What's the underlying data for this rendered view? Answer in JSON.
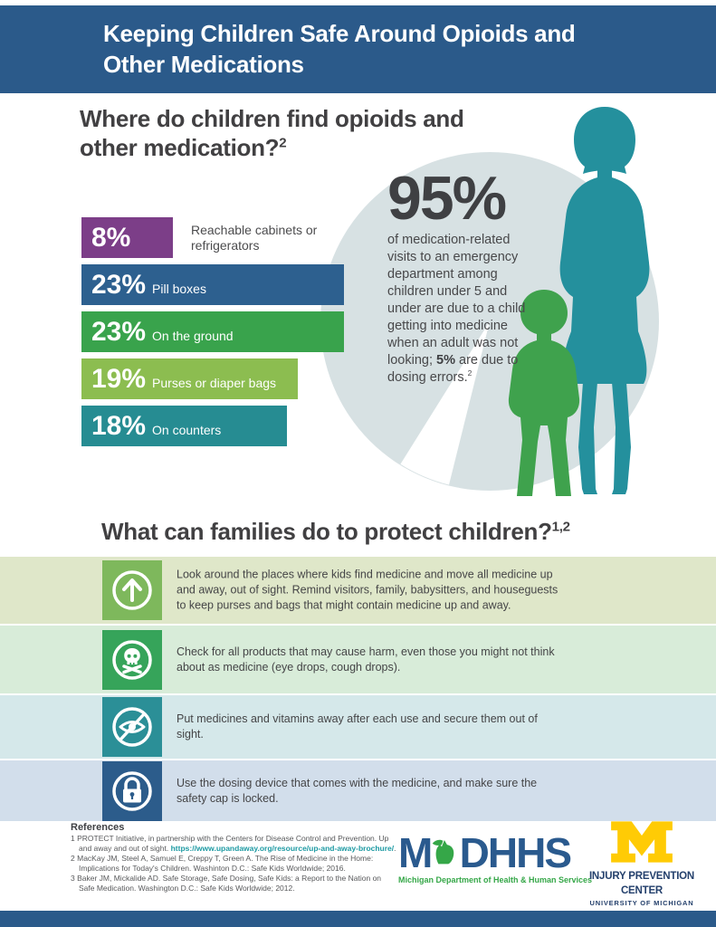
{
  "colors": {
    "header_blue": "#2b5a8a",
    "text_dark": "#414042",
    "circle_gray": "#d7e1e3",
    "woman_teal": "#24909d",
    "child_green": "#3fa24d",
    "link_teal": "#1d9aa3",
    "mdhhs_blue": "#2a5a8e",
    "mdhhs_green": "#35a748",
    "um_navy": "#24406c",
    "um_maize": "#ffcb05"
  },
  "header": {
    "title_line1": "Keeping Children Safe Around Opioids and",
    "title_line2": "Other Medications"
  },
  "section1": {
    "heading_line1": "Where do children find opioids and",
    "heading_line2": "other medication?",
    "heading_sup": "2"
  },
  "chart_data": {
    "type": "bar",
    "orientation": "horizontal",
    "title": "Where do children find opioids and other medication?",
    "unit": "%",
    "categories": [
      "Reachable cabinets or refrigerators",
      "Pill boxes",
      "On the ground",
      "Purses or diaper bags",
      "On counters"
    ],
    "values": [
      8,
      23,
      23,
      19,
      18
    ],
    "bars": [
      {
        "value": "8%",
        "number": 8,
        "label": "Reachable cabinets or refrigerators",
        "color": "#7c3e88",
        "label_outside": true
      },
      {
        "value": "23%",
        "number": 23,
        "label": "Pill boxes",
        "color": "#2d608f",
        "label_outside": false
      },
      {
        "value": "23%",
        "number": 23,
        "label": "On the ground",
        "color": "#39a34c",
        "label_outside": false
      },
      {
        "value": "19%",
        "number": 19,
        "label": "Purses or diaper bags",
        "color": "#8cbd50",
        "label_outside": false
      },
      {
        "value": "18%",
        "number": 18,
        "label": "On counters",
        "color": "#268c92",
        "label_outside": false
      }
    ],
    "annotation": "95% of medication-related visits to an emergency department among children under 5 and under are due to a child getting into medicine when an adult was not looking; 5% are due to dosing errors.",
    "pie_highlight": {
      "total": "95%",
      "remainder": "5%"
    }
  },
  "stat": {
    "number": "95%",
    "text_before": "of medication-related visits to an emergency department among children under 5 and under are due to a child getting into medicine when an adult was not looking; ",
    "bold": "5%",
    "text_after": " are due to dosing errors.",
    "sup": "2"
  },
  "section2": {
    "heading": "What can families do to protect children?",
    "heading_sup": "1,2"
  },
  "actions": [
    {
      "icon": "arrow-up-icon",
      "icon_color": "#7eb85c",
      "band_color": "#dfe7c9",
      "text": "Look around the places where kids find medicine and move all medicine up and away, out of sight. Remind visitors, family, babysitters, and houseguests to keep purses and bags that might contain medicine up and away."
    },
    {
      "icon": "skull-crossbones-icon",
      "icon_color": "#36a45a",
      "band_color": "#d8ecd9",
      "text": "Check for all products that may cause harm, even those you might not think about as medicine (eye drops, cough drops)."
    },
    {
      "icon": "eye-slash-icon",
      "icon_color": "#2b8f97",
      "band_color": "#d5e8ea",
      "text": "Put medicines and vitamins away after each use and secure them out of sight."
    },
    {
      "icon": "lock-icon",
      "icon_color": "#2c5c8b",
      "band_color": "#d2deeb",
      "text": "Use the dosing device that comes with the medicine, and make sure the safety cap is locked."
    }
  ],
  "references": {
    "title": "References",
    "ref1_num": "1",
    "ref1_pre": "PROTECT Initiative, in partnership with the Centers for Disease Control and Prevention. Up and away and out of sight. ",
    "ref1_link": "https://www.upandaway.org/resource/up-and-away-brochure/",
    "ref1_post": ".",
    "ref2_num": "2",
    "ref2_text": "MacKay JM, Steel A, Samuel E, Creppy T, Green A. The Rise of Medicine in the Home: Implications for Today's Children. Washinton D.C.: Safe Kids Worldwide; 2016.",
    "ref3_num": "3",
    "ref3_text": "Baker JM, Mickalide AD. Safe Storage, Safe Dosing, Safe Kids: a Report to the Nation on Safe Medication. Washington D.C.: Safe Kids Worldwide; 2012."
  },
  "logos": {
    "mdhhs_m": "M",
    "mdhhs_dhhs": "DHHS",
    "mdhhs_tagline": "Michigan Department of Health & Human Services",
    "ipc_line1": "INJURY PREVENTION",
    "ipc_line2": "CENTER",
    "ipc_line3": "UNIVERSITY OF MICHIGAN"
  }
}
